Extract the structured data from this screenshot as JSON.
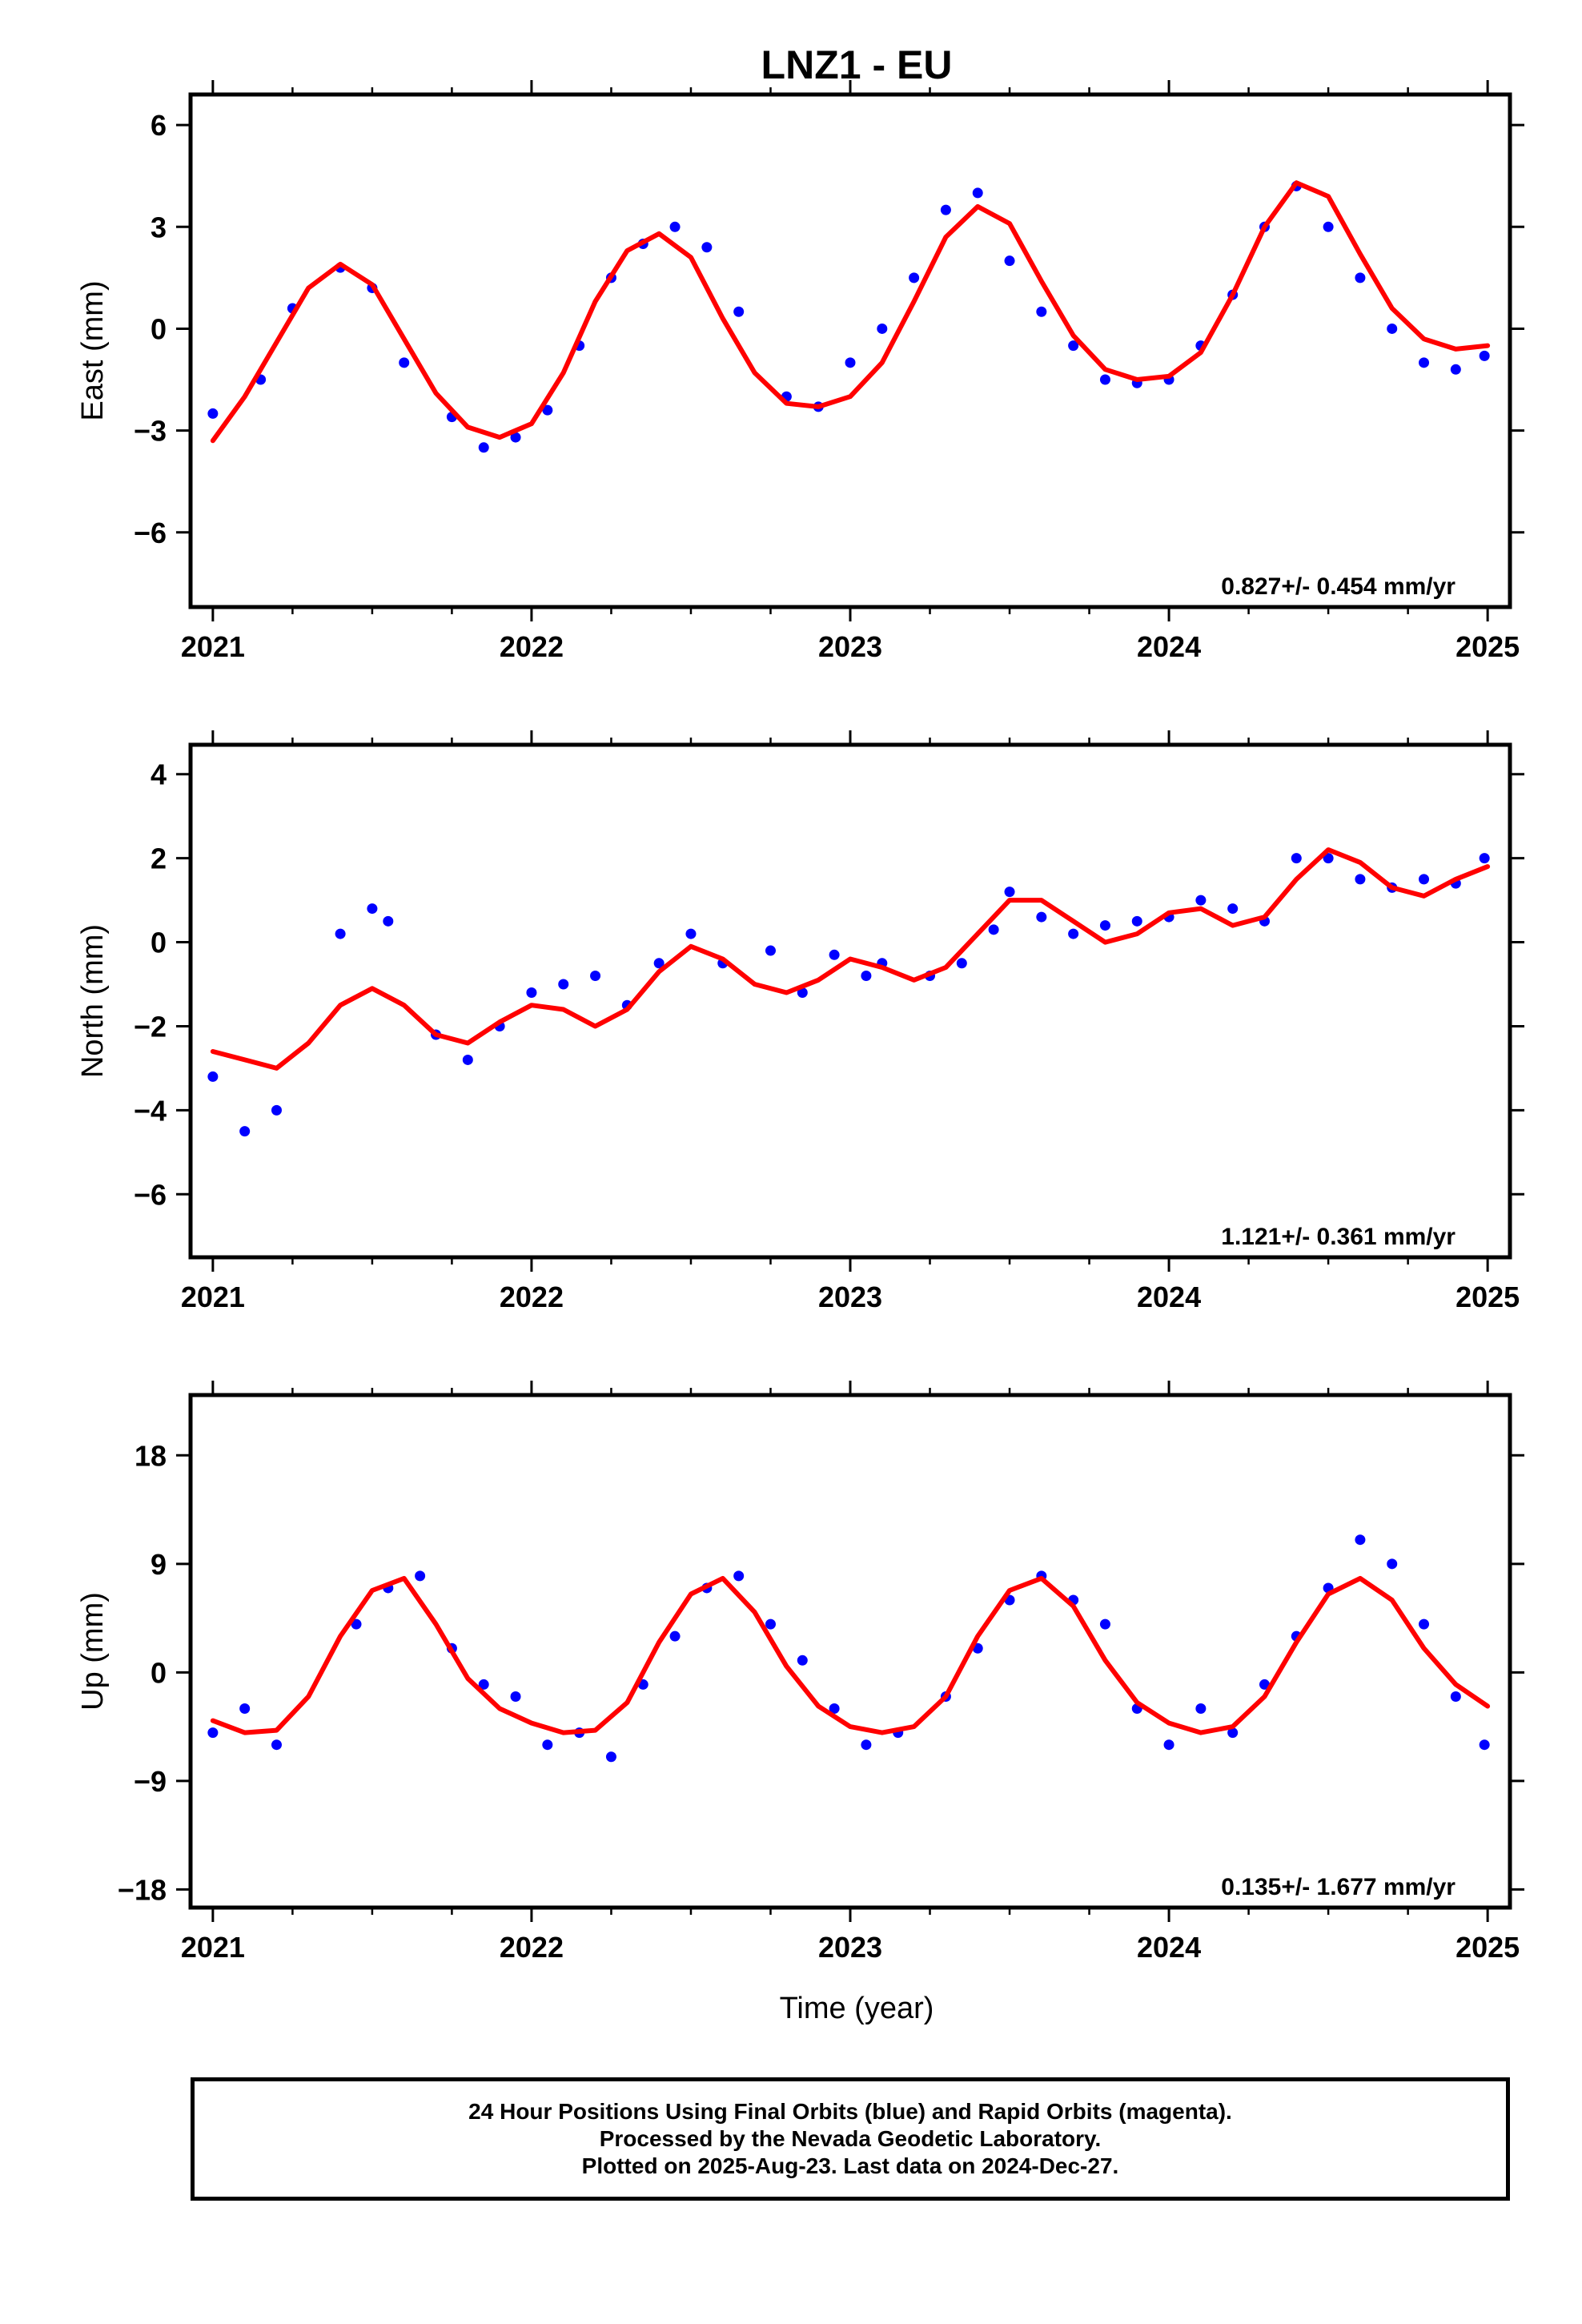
{
  "title": "LNZ1 - EU",
  "xlabel": "Time (year)",
  "colors": {
    "points": "#0000ff",
    "model": "#ff0000",
    "frame": "#000000"
  },
  "chart_data": [
    {
      "type": "scatter",
      "title": "LNZ1 - EU",
      "ylabel": "East (mm)",
      "xlabel": "",
      "xlim": [
        2020.93,
        2025.07
      ],
      "ylim": [
        -8.2,
        6.9
      ],
      "xticks": [
        2021,
        2022,
        2023,
        2024,
        2025
      ],
      "yticks": [
        -6,
        -3,
        0,
        3,
        6
      ],
      "ytick_labels": [
        "−6",
        "−3",
        "0",
        "3",
        "6"
      ],
      "rate_label": "0.827+/- 0.454 mm/yr",
      "grid": false,
      "series": [
        {
          "kind": "points",
          "color": "#0000ff",
          "x": [
            2021.0,
            2021.15,
            2021.25,
            2021.4,
            2021.5,
            2021.6,
            2021.75,
            2021.85,
            2021.95,
            2022.05,
            2022.15,
            2022.25,
            2022.35,
            2022.45,
            2022.55,
            2022.65,
            2022.8,
            2022.9,
            2023.0,
            2023.1,
            2023.2,
            2023.3,
            2023.4,
            2023.5,
            2023.6,
            2023.7,
            2023.8,
            2023.9,
            2024.0,
            2024.1,
            2024.2,
            2024.3,
            2024.4,
            2024.5,
            2024.6,
            2024.7,
            2024.8,
            2024.9,
            2024.99
          ],
          "y": [
            -2.5,
            -1.5,
            0.6,
            1.8,
            1.2,
            -1.0,
            -2.6,
            -3.5,
            -3.2,
            -2.4,
            -0.5,
            1.5,
            2.5,
            3.0,
            2.4,
            0.5,
            -2.0,
            -2.3,
            -1.0,
            0.0,
            1.5,
            3.5,
            4.0,
            2.0,
            0.5,
            -0.5,
            -1.5,
            -1.6,
            -1.5,
            -0.5,
            1.0,
            3.0,
            4.2,
            3.0,
            1.5,
            0.0,
            -1.0,
            -1.2,
            -0.8
          ]
        },
        {
          "kind": "line",
          "color": "#ff0000",
          "x": [
            2021.0,
            2021.1,
            2021.2,
            2021.3,
            2021.4,
            2021.5,
            2021.6,
            2021.7,
            2021.8,
            2021.9,
            2022.0,
            2022.1,
            2022.2,
            2022.3,
            2022.4,
            2022.5,
            2022.6,
            2022.7,
            2022.8,
            2022.9,
            2023.0,
            2023.1,
            2023.2,
            2023.3,
            2023.4,
            2023.5,
            2023.6,
            2023.7,
            2023.8,
            2023.9,
            2024.0,
            2024.1,
            2024.2,
            2024.3,
            2024.4,
            2024.5,
            2024.6,
            2024.7,
            2024.8,
            2024.9,
            2025.0
          ],
          "y": [
            -3.3,
            -2.0,
            -0.4,
            1.2,
            1.9,
            1.3,
            -0.3,
            -1.9,
            -2.9,
            -3.2,
            -2.8,
            -1.3,
            0.8,
            2.3,
            2.8,
            2.1,
            0.3,
            -1.3,
            -2.2,
            -2.3,
            -2.0,
            -1.0,
            0.8,
            2.7,
            3.6,
            3.1,
            1.4,
            -0.2,
            -1.2,
            -1.5,
            -1.4,
            -0.7,
            1.0,
            3.0,
            4.3,
            3.9,
            2.2,
            0.6,
            -0.3,
            -0.6,
            -0.5
          ]
        }
      ]
    },
    {
      "type": "scatter",
      "ylabel": "North (mm)",
      "xlabel": "",
      "xlim": [
        2020.93,
        2025.07
      ],
      "ylim": [
        -7.5,
        4.7
      ],
      "xticks": [
        2021,
        2022,
        2023,
        2024,
        2025
      ],
      "yticks": [
        -6,
        -4,
        -2,
        0,
        2,
        4
      ],
      "ytick_labels": [
        "−6",
        "−4",
        "−2",
        "0",
        "2",
        "4"
      ],
      "rate_label": "1.121+/- 0.361 mm/yr",
      "grid": false,
      "series": [
        {
          "kind": "points",
          "color": "#0000ff",
          "x": [
            2021.0,
            2021.1,
            2021.2,
            2021.4,
            2021.5,
            2021.55,
            2021.7,
            2021.8,
            2021.9,
            2022.0,
            2022.1,
            2022.2,
            2022.3,
            2022.4,
            2022.5,
            2022.6,
            2022.75,
            2022.85,
            2022.95,
            2023.05,
            2023.1,
            2023.25,
            2023.35,
            2023.45,
            2023.5,
            2023.6,
            2023.7,
            2023.8,
            2023.9,
            2024.0,
            2024.1,
            2024.2,
            2024.3,
            2024.4,
            2024.5,
            2024.6,
            2024.7,
            2024.8,
            2024.9,
            2024.99
          ],
          "y": [
            -3.2,
            -4.5,
            -4.0,
            0.2,
            0.8,
            0.5,
            -2.2,
            -2.8,
            -2.0,
            -1.2,
            -1.0,
            -0.8,
            -1.5,
            -0.5,
            0.2,
            -0.5,
            -0.2,
            -1.2,
            -0.3,
            -0.8,
            -0.5,
            -0.8,
            -0.5,
            0.3,
            1.2,
            0.6,
            0.2,
            0.4,
            0.5,
            0.6,
            1.0,
            0.8,
            0.5,
            2.0,
            2.0,
            1.5,
            1.3,
            1.5,
            1.4,
            2.0
          ]
        },
        {
          "kind": "line",
          "color": "#ff0000",
          "x": [
            2021.0,
            2021.1,
            2021.2,
            2021.3,
            2021.4,
            2021.5,
            2021.6,
            2021.7,
            2021.8,
            2021.9,
            2022.0,
            2022.1,
            2022.2,
            2022.3,
            2022.4,
            2022.5,
            2022.6,
            2022.7,
            2022.8,
            2022.9,
            2023.0,
            2023.1,
            2023.2,
            2023.3,
            2023.4,
            2023.5,
            2023.6,
            2023.7,
            2023.8,
            2023.9,
            2024.0,
            2024.1,
            2024.2,
            2024.3,
            2024.4,
            2024.5,
            2024.6,
            2024.7,
            2024.8,
            2024.9,
            2025.0
          ],
          "y": [
            -2.6,
            -2.8,
            -3.0,
            -2.4,
            -1.5,
            -1.1,
            -1.5,
            -2.2,
            -2.4,
            -1.9,
            -1.5,
            -1.6,
            -2.0,
            -1.6,
            -0.7,
            -0.1,
            -0.4,
            -1.0,
            -1.2,
            -0.9,
            -0.4,
            -0.6,
            -0.9,
            -0.6,
            0.2,
            1.0,
            1.0,
            0.5,
            0.0,
            0.2,
            0.7,
            0.8,
            0.4,
            0.6,
            1.5,
            2.2,
            1.9,
            1.3,
            1.1,
            1.5,
            1.8
          ]
        }
      ]
    },
    {
      "type": "scatter",
      "ylabel": "Up (mm)",
      "xlabel": "Time (year)",
      "xlim": [
        2020.93,
        2025.07
      ],
      "ylim": [
        -19.5,
        23.0
      ],
      "xticks": [
        2021,
        2022,
        2023,
        2024,
        2025
      ],
      "yticks": [
        -18,
        -9,
        0,
        9,
        18
      ],
      "ytick_labels": [
        "−18",
        "−9",
        "0",
        "9",
        "18"
      ],
      "rate_label": "0.135+/- 1.677 mm/yr",
      "grid": false,
      "series": [
        {
          "kind": "points",
          "color": "#0000ff",
          "x": [
            2021.0,
            2021.1,
            2021.2,
            2021.45,
            2021.55,
            2021.65,
            2021.75,
            2021.85,
            2021.95,
            2022.05,
            2022.15,
            2022.25,
            2022.35,
            2022.45,
            2022.55,
            2022.65,
            2022.75,
            2022.85,
            2022.95,
            2023.05,
            2023.15,
            2023.3,
            2023.4,
            2023.5,
            2023.6,
            2023.7,
            2023.8,
            2023.9,
            2024.0,
            2024.1,
            2024.2,
            2024.3,
            2024.4,
            2024.5,
            2024.6,
            2024.7,
            2024.8,
            2024.9,
            2024.99
          ],
          "y": [
            -5.0,
            -3.0,
            -6.0,
            4.0,
            7.0,
            8.0,
            2.0,
            -1.0,
            -2.0,
            -6.0,
            -5.0,
            -7.0,
            -1.0,
            3.0,
            7.0,
            8.0,
            4.0,
            1.0,
            -3.0,
            -6.0,
            -5.0,
            -2.0,
            2.0,
            6.0,
            8.0,
            6.0,
            4.0,
            -3.0,
            -6.0,
            -3.0,
            -5.0,
            -1.0,
            3.0,
            7.0,
            11.0,
            9.0,
            4.0,
            -2.0,
            -6.0
          ]
        },
        {
          "kind": "line",
          "color": "#ff0000",
          "x": [
            2021.0,
            2021.1,
            2021.2,
            2021.3,
            2021.4,
            2021.5,
            2021.6,
            2021.7,
            2021.8,
            2021.9,
            2022.0,
            2022.1,
            2022.2,
            2022.3,
            2022.4,
            2022.5,
            2022.6,
            2022.7,
            2022.8,
            2022.9,
            2023.0,
            2023.1,
            2023.2,
            2023.3,
            2023.4,
            2023.5,
            2023.6,
            2023.7,
            2023.8,
            2023.9,
            2024.0,
            2024.1,
            2024.2,
            2024.3,
            2024.4,
            2024.5,
            2024.6,
            2024.7,
            2024.8,
            2024.9,
            2025.0
          ],
          "y": [
            -4.0,
            -5.0,
            -4.8,
            -2.0,
            3.0,
            6.8,
            7.8,
            4.0,
            -0.5,
            -3.0,
            -4.2,
            -5.0,
            -4.8,
            -2.5,
            2.5,
            6.5,
            7.8,
            5.0,
            0.5,
            -2.8,
            -4.5,
            -5.0,
            -4.5,
            -2.0,
            3.0,
            6.8,
            7.8,
            5.5,
            1.0,
            -2.5,
            -4.2,
            -5.0,
            -4.5,
            -2.0,
            2.5,
            6.5,
            7.8,
            6.0,
            2.0,
            -1.0,
            -2.8
          ]
        }
      ]
    }
  ],
  "footer": {
    "line1": "24 Hour Positions Using Final Orbits (blue) and Rapid Orbits (magenta).",
    "line2": "Processed by the Nevada Geodetic Laboratory.",
    "line3": "Plotted on 2025-Aug-23. Last data on 2024-Dec-27."
  }
}
